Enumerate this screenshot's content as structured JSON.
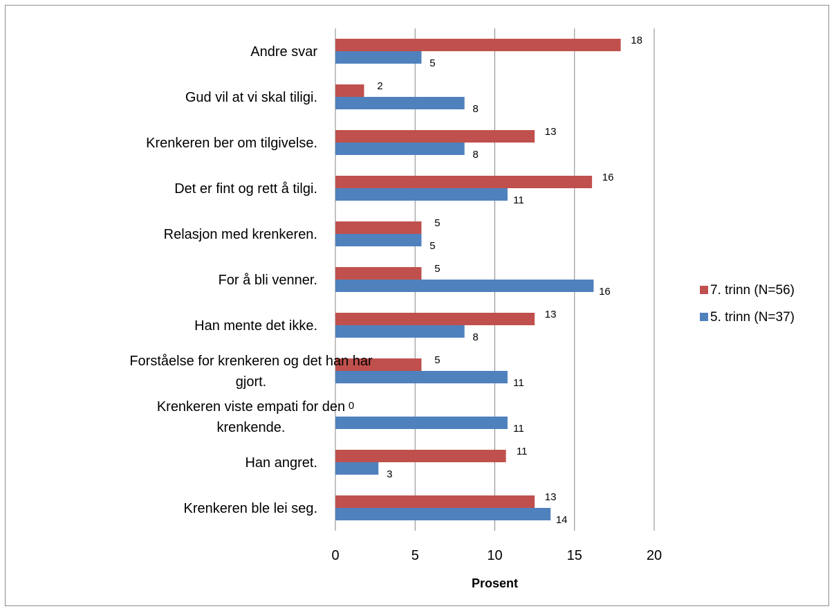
{
  "chart_data": {
    "type": "bar",
    "orientation": "horizontal",
    "title": "",
    "xlabel": "Prosent",
    "ylabel": "",
    "xlim": [
      0,
      20
    ],
    "xticks": [
      0,
      5,
      10,
      15,
      20
    ],
    "grid": true,
    "legend_position": "right",
    "categories": [
      "Andre svar",
      "Gud vil at vi skal tiligi.",
      "Krenkeren ber om tilgivelse.",
      "Det er fint og rett å tilgi.",
      "Relasjon med krenkeren.",
      "For å bli venner.",
      "Han mente det ikke.",
      "Forståelse for krenkeren og det han har gjort.",
      "Krenkeren viste empati for den krenkende.",
      "Han angret.",
      "Krenkeren ble lei seg."
    ],
    "category_lines": [
      [
        "Andre svar"
      ],
      [
        "Gud vil at vi skal tiligi."
      ],
      [
        "Krenkeren ber om tilgivelse."
      ],
      [
        "Det er fint og rett å tilgi."
      ],
      [
        "Relasjon med krenkeren."
      ],
      [
        "For å bli venner."
      ],
      [
        "Han mente det ikke."
      ],
      [
        "Forståelse for krenkeren og det han har",
        "gjort."
      ],
      [
        "Krenkeren viste empati for den",
        "krenkende."
      ],
      [
        "Han angret."
      ],
      [
        "Krenkeren ble lei seg."
      ]
    ],
    "series": [
      {
        "name": "7. trinn (N=56)",
        "color": "#c0504d",
        "values": [
          17.9,
          1.8,
          12.5,
          16.1,
          5.4,
          5.4,
          12.5,
          5.4,
          0,
          10.7,
          12.5
        ],
        "labels": [
          "18",
          "2",
          "13",
          "16",
          "5",
          "5",
          "13",
          "5",
          "0",
          "11",
          "13"
        ]
      },
      {
        "name": "5. trinn (N=37)",
        "color": "#4f81bd",
        "values": [
          5.4,
          8.1,
          8.1,
          10.8,
          5.4,
          16.2,
          8.1,
          10.8,
          10.8,
          2.7,
          13.5
        ],
        "labels": [
          "5",
          "8",
          "8",
          "11",
          "5",
          "16",
          "8",
          "11",
          "11",
          "3",
          "14"
        ]
      }
    ]
  }
}
